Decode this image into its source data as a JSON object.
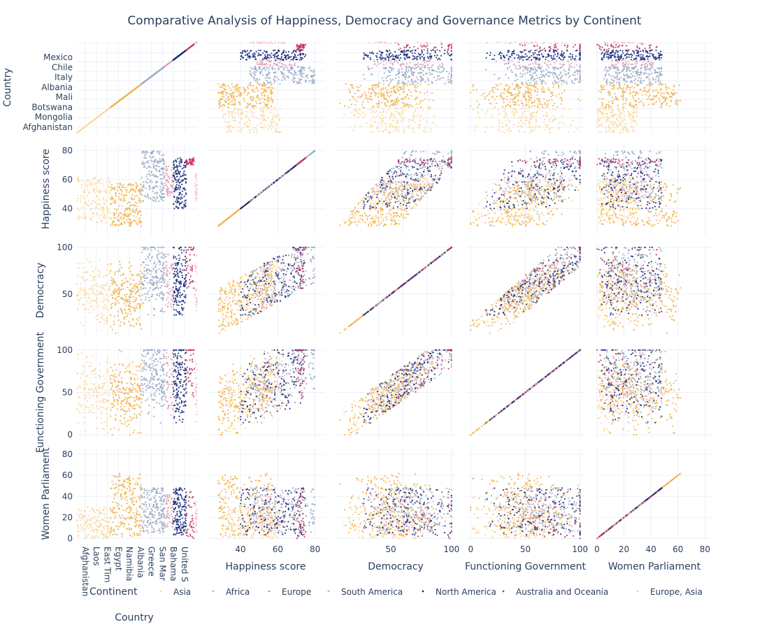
{
  "chart_data": {
    "type": "scatter",
    "title": "Comparative Analysis of Happiness, Democracy and Governance Metrics by Continent",
    "dimensions": [
      "Country",
      "Happiness score",
      "Democracy",
      "Functioning Government",
      "Women Parliament"
    ],
    "country_y_ticks": [
      "Afghanistan",
      "Mongolia",
      "Botswana",
      "Mali",
      "Albania",
      "Italy",
      "Chile",
      "Mexico"
    ],
    "country_x_ticks": [
      "Afghanistan",
      "Laos",
      "East Timor",
      "Egypt",
      "Namibia",
      "Albania",
      "Greece",
      "San Marino",
      "Bahamas",
      "United States"
    ],
    "country_x_ticks_display": [
      "Afghanistan",
      "Laos",
      "East Tim",
      "Egypt",
      "Namibia",
      "Albania",
      "Greece",
      "San Mar",
      "Bahama",
      "United S"
    ],
    "axis_ranges": {
      "Happiness score": [
        22,
        85
      ],
      "Democracy": [
        5,
        103
      ],
      "Functioning Government": [
        -4,
        104
      ],
      "Women Parliament": [
        -1,
        86
      ]
    },
    "axis_ticks": {
      "Happiness score": [
        40,
        60,
        80
      ],
      "Democracy": [
        50,
        100
      ],
      "Functioning Government": [
        0,
        50,
        100
      ],
      "Women Parliament": [
        0,
        20,
        40,
        60,
        80
      ]
    },
    "grid": true,
    "legend": {
      "title": "Continent",
      "placement": "bottom",
      "entries": [
        "Asia",
        "Africa",
        "Europe",
        "South America",
        "North America",
        "Australia and Oceania",
        "Europe, Asia"
      ]
    },
    "series": [
      {
        "name": "Asia",
        "country_range": [
          0.0,
          0.28
        ],
        "happiness": [
          30,
          62
        ],
        "democracy": [
          15,
          70
        ],
        "government": [
          0,
          80
        ],
        "women": [
          0,
          30
        ]
      },
      {
        "name": "Africa",
        "country_range": [
          0.28,
          0.54
        ],
        "happiness": [
          28,
          58
        ],
        "democracy": [
          10,
          70
        ],
        "government": [
          0,
          65
        ],
        "women": [
          2,
          62
        ]
      },
      {
        "name": "Europe",
        "country_range": [
          0.54,
          0.73
        ],
        "happiness": [
          45,
          80
        ],
        "democracy": [
          40,
          100
        ],
        "government": [
          20,
          100
        ],
        "women": [
          5,
          48
        ]
      },
      {
        "name": "South America",
        "country_range": [
          0.73,
          0.8
        ],
        "happiness": [
          48,
          70
        ],
        "democracy": [
          40,
          90
        ],
        "government": [
          30,
          80
        ],
        "women": [
          10,
          42
        ]
      },
      {
        "name": "North America",
        "country_range": [
          0.8,
          0.91
        ],
        "happiness": [
          40,
          75
        ],
        "democracy": [
          25,
          95
        ],
        "government": [
          10,
          95
        ],
        "women": [
          3,
          48
        ]
      },
      {
        "name": "Australia and Oceania",
        "country_range": [
          0.91,
          0.98
        ],
        "happiness": [
          70,
          75
        ],
        "democracy": [
          85,
          95
        ],
        "government": [
          80,
          95
        ],
        "women": [
          0,
          45
        ]
      },
      {
        "name": "Europe, Asia",
        "country_range": [
          0.98,
          1.0
        ],
        "happiness": [
          45,
          65
        ],
        "democracy": [
          30,
          70
        ],
        "government": [
          30,
          70
        ],
        "women": [
          5,
          35
        ]
      }
    ],
    "colors": {
      "Asia": "#fbd89b",
      "Africa": "#f0b149",
      "Europe": "#98a8c5",
      "South America": "#dda4b4",
      "North America": "#1c2e7c",
      "Australia and Oceania": "#c4345e",
      "Europe, Asia": "#f4c0c8"
    }
  }
}
